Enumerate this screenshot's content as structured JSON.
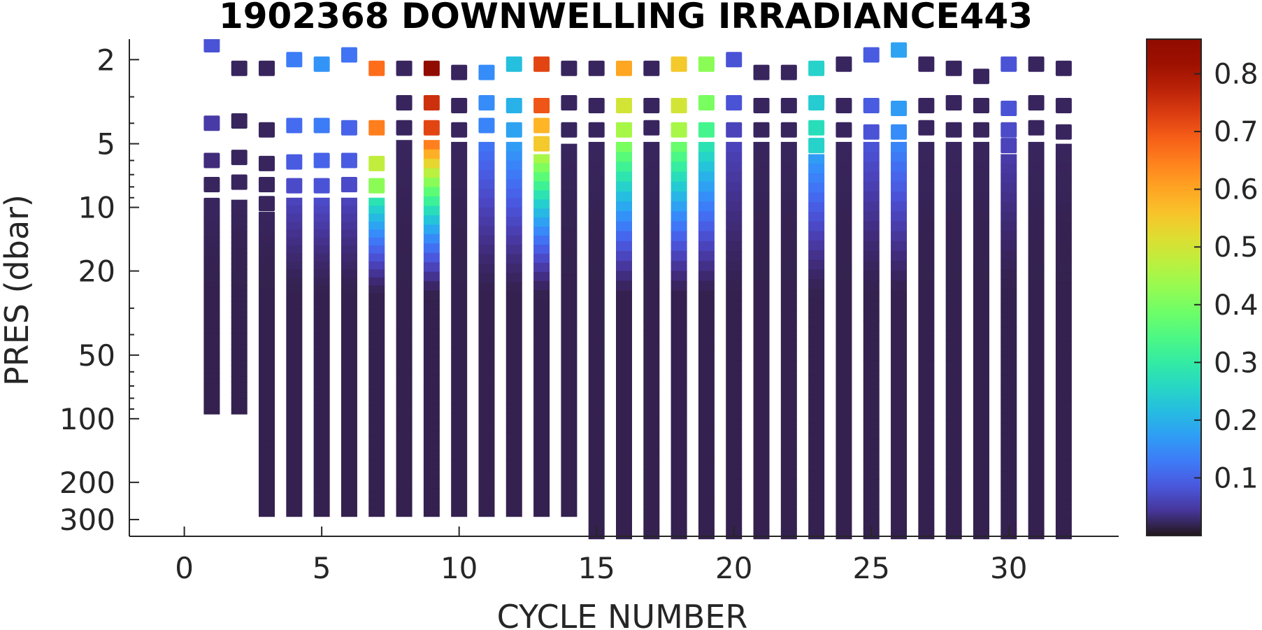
{
  "chart_data": {
    "type": "heatmap",
    "title": "1902368  DOWNWELLING IRRADIANCE443",
    "xlabel": "CYCLE NUMBER",
    "ylabel": "PRES (dbar)",
    "x_ticks": [
      "0",
      "5",
      "10",
      "15",
      "20",
      "25",
      "30"
    ],
    "x_tick_values": [
      0,
      5,
      10,
      15,
      20,
      25,
      30
    ],
    "xlim": [
      -2,
      34
    ],
    "y_scale": "log",
    "y_reversed": true,
    "y_ticks": [
      "2",
      "5",
      "10",
      "20",
      "50",
      "100",
      "200",
      "300"
    ],
    "y_tick_values": [
      2,
      5,
      10,
      20,
      50,
      100,
      200,
      300
    ],
    "ylim": [
      1.6,
      360
    ],
    "colorbar": {
      "colormap": "turbo",
      "clim": [
        0.0,
        0.86
      ],
      "ticks": [
        "0.1",
        "0.2",
        "0.3",
        "0.4",
        "0.5",
        "0.6",
        "0.7",
        "0.8"
      ],
      "tick_values": [
        0.1,
        0.2,
        0.3,
        0.4,
        0.5,
        0.6,
        0.7,
        0.8
      ]
    },
    "profiles": [
      {
        "cycle": 1,
        "discrete": [
          [
            1.7,
            0.08
          ],
          [
            4.0,
            0.05
          ],
          [
            6.0,
            0.03
          ],
          [
            7.8,
            0.02
          ],
          [
            9.8,
            0.02
          ]
        ],
        "cont_top": 10.5,
        "cont_bottom": 95,
        "surface_value": 0.02
      },
      {
        "cycle": 2,
        "discrete": [
          [
            2.2,
            0.02
          ],
          [
            3.9,
            0.02
          ],
          [
            5.8,
            0.02
          ],
          [
            7.6,
            0.02
          ]
        ],
        "cont_top": 9.2,
        "cont_bottom": 95,
        "surface_value": 0.02
      },
      {
        "cycle": 3,
        "discrete": [
          [
            2.2,
            0.02
          ],
          [
            4.3,
            0.02
          ],
          [
            6.2,
            0.02
          ],
          [
            7.8,
            0.02
          ],
          [
            9.6,
            0.02
          ]
        ],
        "cont_top": 10.5,
        "cont_bottom": 290,
        "surface_value": 0.02
      },
      {
        "cycle": 4,
        "discrete": [
          [
            2.0,
            0.13
          ],
          [
            4.1,
            0.11
          ],
          [
            6.1,
            0.09
          ],
          [
            7.9,
            0.07
          ]
        ],
        "cont_top": 9.0,
        "cont_bottom": 290,
        "surface_value": 0.06
      },
      {
        "cycle": 5,
        "discrete": [
          [
            2.1,
            0.16
          ],
          [
            4.1,
            0.13
          ],
          [
            6.0,
            0.1
          ],
          [
            7.9,
            0.08
          ]
        ],
        "cont_top": 9.0,
        "cont_bottom": 290,
        "surface_value": 0.07
      },
      {
        "cycle": 6,
        "discrete": [
          [
            1.9,
            0.12
          ],
          [
            4.2,
            0.1
          ],
          [
            6.0,
            0.09
          ],
          [
            7.8,
            0.07
          ]
        ],
        "cont_top": 9.0,
        "cont_bottom": 290,
        "surface_value": 0.06
      },
      {
        "cycle": 7,
        "discrete": [
          [
            2.2,
            0.67
          ],
          [
            4.2,
            0.65
          ],
          [
            6.2,
            0.48
          ],
          [
            7.9,
            0.42
          ]
        ],
        "cont_top": 9.0,
        "cont_bottom": 290,
        "surface_value": 0.28
      },
      {
        "cycle": 8,
        "discrete": [
          [
            2.2,
            0.02
          ],
          [
            3.2,
            0.02
          ],
          [
            4.2,
            0.02
          ]
        ],
        "cont_top": 4.8,
        "cont_bottom": 290,
        "surface_value": 0.02
      },
      {
        "cycle": 9,
        "discrete": [
          [
            2.2,
            0.86
          ],
          [
            3.2,
            0.75
          ],
          [
            4.2,
            0.72
          ]
        ],
        "cont_top": 4.8,
        "cont_bottom": 290,
        "surface_value": 0.65
      },
      {
        "cycle": 10,
        "discrete": [
          [
            2.3,
            0.02
          ],
          [
            3.3,
            0.02
          ],
          [
            4.3,
            0.02
          ]
        ],
        "cont_top": 4.9,
        "cont_bottom": 290,
        "surface_value": 0.02
      },
      {
        "cycle": 11,
        "discrete": [
          [
            2.3,
            0.15
          ],
          [
            3.2,
            0.15
          ],
          [
            4.1,
            0.14
          ]
        ],
        "cont_top": 4.9,
        "cont_bottom": 290,
        "surface_value": 0.12
      },
      {
        "cycle": 12,
        "discrete": [
          [
            2.1,
            0.22
          ],
          [
            3.3,
            0.2
          ],
          [
            4.3,
            0.18
          ]
        ],
        "cont_top": 4.9,
        "cont_bottom": 290,
        "surface_value": 0.17
      },
      {
        "cycle": 13,
        "discrete": [
          [
            2.1,
            0.72
          ],
          [
            3.3,
            0.7
          ],
          [
            4.1,
            0.58
          ],
          [
            5.0,
            0.55
          ]
        ],
        "cont_top": 5.6,
        "cont_bottom": 290,
        "surface_value": 0.45
      },
      {
        "cycle": 14,
        "discrete": [
          [
            2.2,
            0.02
          ],
          [
            3.2,
            0.02
          ],
          [
            4.3,
            0.02
          ]
        ],
        "cont_top": 5.0,
        "cont_bottom": 290,
        "surface_value": 0.02
      },
      {
        "cycle": 15,
        "discrete": [
          [
            2.2,
            0.02
          ],
          [
            3.3,
            0.02
          ],
          [
            4.3,
            0.02
          ]
        ],
        "cont_top": 4.9,
        "cont_bottom": 370,
        "surface_value": 0.02
      },
      {
        "cycle": 16,
        "discrete": [
          [
            2.2,
            0.6
          ],
          [
            3.3,
            0.5
          ],
          [
            4.3,
            0.45
          ]
        ],
        "cont_top": 4.9,
        "cont_bottom": 370,
        "surface_value": 0.4
      },
      {
        "cycle": 17,
        "discrete": [
          [
            2.2,
            0.02
          ],
          [
            3.3,
            0.02
          ],
          [
            4.2,
            0.02
          ]
        ],
        "cont_top": 4.9,
        "cont_bottom": 370,
        "surface_value": 0.02
      },
      {
        "cycle": 18,
        "discrete": [
          [
            2.1,
            0.55
          ],
          [
            3.3,
            0.5
          ],
          [
            4.3,
            0.45
          ]
        ],
        "cont_top": 4.9,
        "cont_bottom": 370,
        "surface_value": 0.38
      },
      {
        "cycle": 19,
        "discrete": [
          [
            2.1,
            0.42
          ],
          [
            3.2,
            0.4
          ],
          [
            4.3,
            0.33
          ]
        ],
        "cont_top": 4.9,
        "cont_bottom": 370,
        "surface_value": 0.28
      },
      {
        "cycle": 20,
        "discrete": [
          [
            2.0,
            0.08
          ],
          [
            3.2,
            0.08
          ],
          [
            4.3,
            0.06
          ]
        ],
        "cont_top": 4.9,
        "cont_bottom": 370,
        "surface_value": 0.06
      },
      {
        "cycle": 21,
        "discrete": [
          [
            2.3,
            0.02
          ],
          [
            3.3,
            0.02
          ],
          [
            4.3,
            0.02
          ]
        ],
        "cont_top": 4.9,
        "cont_bottom": 370,
        "surface_value": 0.02
      },
      {
        "cycle": 22,
        "discrete": [
          [
            2.3,
            0.02
          ],
          [
            3.3,
            0.02
          ],
          [
            4.3,
            0.02
          ]
        ],
        "cont_top": 4.9,
        "cont_bottom": 370,
        "surface_value": 0.02
      },
      {
        "cycle": 23,
        "discrete": [
          [
            2.2,
            0.25
          ],
          [
            3.2,
            0.24
          ],
          [
            4.2,
            0.27
          ],
          [
            5.1,
            0.25
          ]
        ],
        "cont_top": 5.6,
        "cont_bottom": 370,
        "surface_value": 0.17
      },
      {
        "cycle": 24,
        "discrete": [
          [
            2.1,
            0.02
          ],
          [
            3.3,
            0.02
          ],
          [
            4.3,
            0.02
          ]
        ],
        "cont_top": 4.9,
        "cont_bottom": 370,
        "surface_value": 0.02
      },
      {
        "cycle": 25,
        "discrete": [
          [
            1.9,
            0.09
          ],
          [
            3.3,
            0.09
          ],
          [
            4.4,
            0.08
          ]
        ],
        "cont_top": 4.9,
        "cont_bottom": 370,
        "surface_value": 0.08
      },
      {
        "cycle": 26,
        "discrete": [
          [
            1.8,
            0.18
          ],
          [
            3.4,
            0.17
          ],
          [
            4.4,
            0.15
          ]
        ],
        "cont_top": 4.9,
        "cont_bottom": 370,
        "surface_value": 0.14
      },
      {
        "cycle": 27,
        "discrete": [
          [
            2.1,
            0.02
          ],
          [
            3.3,
            0.02
          ],
          [
            4.2,
            0.02
          ]
        ],
        "cont_top": 4.9,
        "cont_bottom": 370,
        "surface_value": 0.02
      },
      {
        "cycle": 28,
        "discrete": [
          [
            2.2,
            0.02
          ],
          [
            3.2,
            0.02
          ],
          [
            4.3,
            0.02
          ]
        ],
        "cont_top": 4.9,
        "cont_bottom": 370,
        "surface_value": 0.02
      },
      {
        "cycle": 29,
        "discrete": [
          [
            2.4,
            0.02
          ],
          [
            3.3,
            0.02
          ],
          [
            4.3,
            0.02
          ]
        ],
        "cont_top": 4.9,
        "cont_bottom": 370,
        "surface_value": 0.02
      },
      {
        "cycle": 30,
        "discrete": [
          [
            2.1,
            0.08
          ],
          [
            3.4,
            0.08
          ],
          [
            4.3,
            0.07
          ],
          [
            5.1,
            0.06
          ]
        ],
        "cont_top": 5.6,
        "cont_bottom": 370,
        "surface_value": 0.05
      },
      {
        "cycle": 31,
        "discrete": [
          [
            2.1,
            0.02
          ],
          [
            3.2,
            0.02
          ],
          [
            4.2,
            0.02
          ]
        ],
        "cont_top": 4.9,
        "cont_bottom": 370,
        "surface_value": 0.02
      },
      {
        "cycle": 32,
        "discrete": [
          [
            2.2,
            0.02
          ],
          [
            3.3,
            0.02
          ],
          [
            4.4,
            0.02
          ]
        ],
        "cont_top": 5.0,
        "cont_bottom": 370,
        "surface_value": 0.02
      }
    ]
  }
}
